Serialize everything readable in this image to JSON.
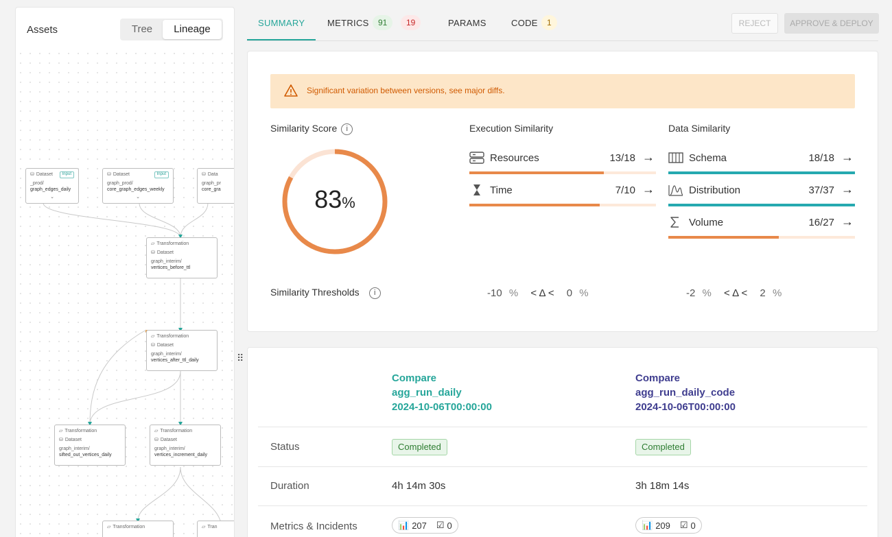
{
  "assets": {
    "title": "Assets",
    "toggle": {
      "tree": "Tree",
      "lineage": "Lineage"
    },
    "nodes": [
      {
        "type": "Dataset",
        "badge": "Input",
        "path": "_prod/",
        "name": "graph_edges_daily"
      },
      {
        "type": "Dataset",
        "badge": "Input",
        "path": "graph_prod/",
        "name": "core_graph_edges_weekly"
      },
      {
        "type": "Data",
        "path": "graph_pr",
        "name": "core_gra"
      },
      {
        "type": "Transformation",
        "sub": "Dataset",
        "path": "graph_interim/",
        "name": "vertices_before_ttl"
      },
      {
        "type": "Transformation",
        "sub": "Dataset",
        "path": "graph_interim/",
        "name": "vertices_after_ttl_daily"
      },
      {
        "type": "Transformation",
        "sub": "Dataset",
        "path": "graph_interim/",
        "name": "sifted_out_vertices_daily"
      },
      {
        "type": "Transformation",
        "sub": "Dataset",
        "path": "graph_interim/",
        "name": "vertices_increment_daily"
      },
      {
        "type": "Transformation"
      },
      {
        "type": "Tran"
      }
    ]
  },
  "tabs": {
    "summary": "SUMMARY",
    "metrics": "METRICS",
    "metrics_ok": "91",
    "metrics_bad": "19",
    "params": "PARAMS",
    "code": "CODE",
    "code_count": "1"
  },
  "actions": {
    "reject": "REJECT",
    "approve": "APPROVE & DEPLOY"
  },
  "alert": {
    "text": "Significant variation between versions, see major diffs."
  },
  "similarity": {
    "score_label": "Similarity Score",
    "score_value": "83",
    "score_unit": "%",
    "score_fraction": 0.83,
    "execution_label": "Execution Similarity",
    "data_label": "Data Similarity",
    "execution": [
      {
        "label": "Resources",
        "value": "13/18",
        "fraction": 0.722,
        "icon": "server-icon",
        "color": "#e8894a"
      },
      {
        "label": "Time",
        "value": "7/10",
        "fraction": 0.7,
        "icon": "hourglass-icon",
        "color": "#e8894a"
      }
    ],
    "data": [
      {
        "label": "Schema",
        "value": "18/18",
        "fraction": 1.0,
        "icon": "columns-icon",
        "color": "#26a9b0"
      },
      {
        "label": "Distribution",
        "value": "37/37",
        "fraction": 1.0,
        "icon": "distribution-icon",
        "color": "#26a9b0"
      },
      {
        "label": "Volume",
        "value": "16/27",
        "fraction": 0.593,
        "icon": "sigma-icon",
        "color": "#e8894a"
      }
    ],
    "thresholds_label": "Similarity Thresholds",
    "exec_threshold": {
      "low": "-10",
      "unit1": "%",
      "op": "< Δ <",
      "high": "0",
      "unit2": "%"
    },
    "data_threshold": {
      "low": "-2",
      "unit1": "%",
      "op": "< Δ <",
      "high": "2",
      "unit2": "%"
    }
  },
  "compare": {
    "left": {
      "line1": "Compare",
      "line2": "agg_run_daily",
      "line3": "2024-10-06T00:00:00"
    },
    "right": {
      "line1": "Compare",
      "line2": "agg_run_daily_code",
      "line3": "2024-10-06T00:00:00"
    },
    "rows": {
      "status_label": "Status",
      "status_left": "Completed",
      "status_right": "Completed",
      "duration_label": "Duration",
      "duration_left": "4h 14m 30s",
      "duration_right": "3h 18m 14s",
      "metrics_label": "Metrics & Incidents",
      "metrics_left": "207",
      "incidents_left": "0",
      "metrics_right": "209",
      "incidents_right": "0"
    }
  },
  "colors": {
    "accent": "#26a69a",
    "orange": "#e8894a",
    "teal": "#26a9b0",
    "navy": "#3f3d8f"
  }
}
